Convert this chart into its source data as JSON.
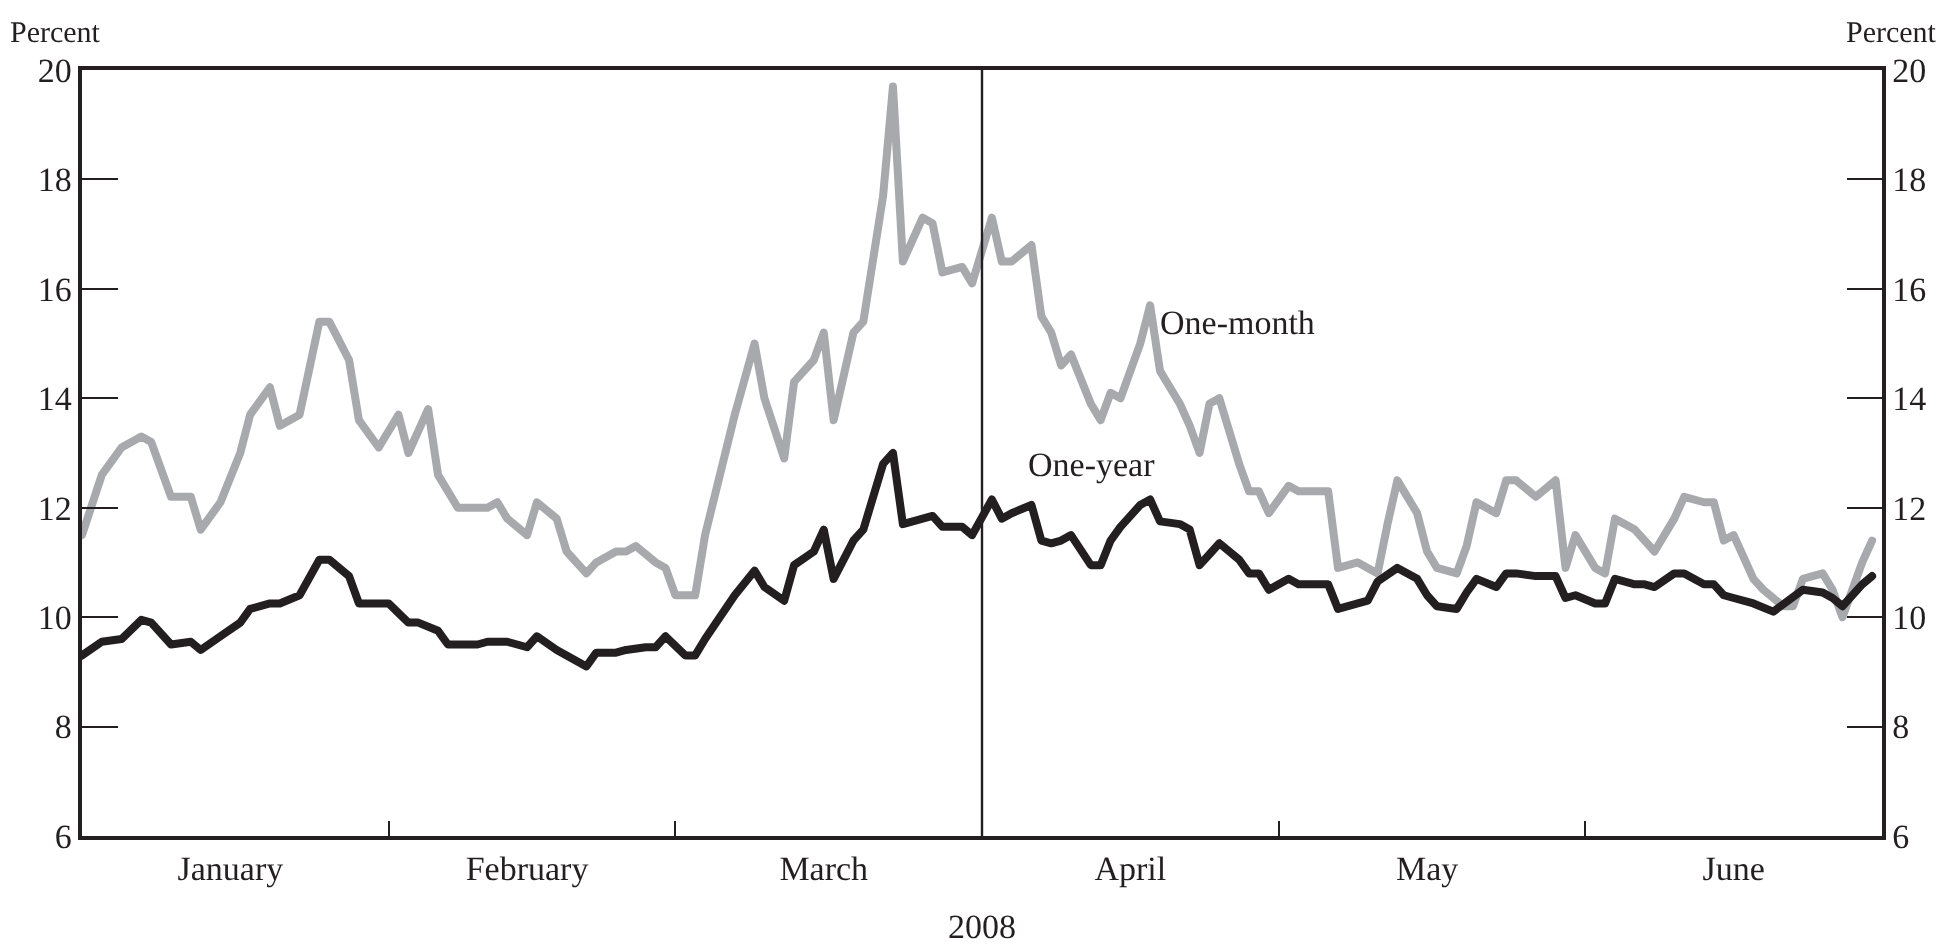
{
  "chart_data": {
    "type": "line",
    "xlabel": "2008",
    "ylabel": "Percent",
    "y2label": "Percent",
    "xlim": [
      "2008-01-01",
      "2008-07-01"
    ],
    "xticks": [
      {
        "value": "2008-01-16",
        "label": "January"
      },
      {
        "value": "2008-02-01",
        "label": null
      },
      {
        "value": "2008-02-15",
        "label": "February"
      },
      {
        "value": "2008-03-01",
        "label": null
      },
      {
        "value": "2008-03-16",
        "label": "March"
      },
      {
        "value": "2008-04-16",
        "label": "April"
      },
      {
        "value": "2008-05-01",
        "label": null
      },
      {
        "value": "2008-05-16",
        "label": "May"
      },
      {
        "value": "2008-06-01",
        "label": null
      },
      {
        "value": "2008-06-16",
        "label": "June"
      }
    ],
    "ylim": [
      6,
      20
    ],
    "yticks": [
      6,
      8,
      10,
      12,
      14,
      16,
      18,
      20
    ],
    "y2lim": [
      6,
      20
    ],
    "y2ticks": [
      6,
      8,
      10,
      12,
      14,
      16,
      18,
      20
    ],
    "legend": false,
    "marker": "none",
    "line_style": "solid",
    "ref_lines": [
      {
        "axis": "x",
        "value": "2008-04-01",
        "color": "#231f20"
      }
    ],
    "series": [
      {
        "name": "One-month",
        "color": "#a7a9ac",
        "x": [
          "2008-01-01",
          "2008-01-03",
          "2008-01-05",
          "2008-01-07",
          "2008-01-08",
          "2008-01-10",
          "2008-01-12",
          "2008-01-13",
          "2008-01-15",
          "2008-01-17",
          "2008-01-18",
          "2008-01-20",
          "2008-01-21",
          "2008-01-23",
          "2008-01-25",
          "2008-01-26",
          "2008-01-28",
          "2008-01-29",
          "2008-01-31",
          "2008-02-02",
          "2008-02-03",
          "2008-02-05",
          "2008-02-06",
          "2008-02-08",
          "2008-02-09",
          "2008-02-11",
          "2008-02-12",
          "2008-02-13",
          "2008-02-15",
          "2008-02-16",
          "2008-02-18",
          "2008-02-19",
          "2008-02-21",
          "2008-02-22",
          "2008-02-24",
          "2008-02-25",
          "2008-02-26",
          "2008-02-28",
          "2008-02-29",
          "2008-03-01",
          "2008-03-03",
          "2008-03-04",
          "2008-03-07",
          "2008-03-09",
          "2008-03-10",
          "2008-03-12",
          "2008-03-13",
          "2008-03-15",
          "2008-03-16",
          "2008-03-17",
          "2008-03-19",
          "2008-03-20",
          "2008-03-22",
          "2008-03-23",
          "2008-03-24",
          "2008-03-26",
          "2008-03-27",
          "2008-03-28",
          "2008-03-30",
          "2008-03-31",
          "2008-04-02",
          "2008-04-03",
          "2008-04-04",
          "2008-04-06",
          "2008-04-07",
          "2008-04-08",
          "2008-04-09",
          "2008-04-10",
          "2008-04-12",
          "2008-04-13",
          "2008-04-14",
          "2008-04-15",
          "2008-04-17",
          "2008-04-18",
          "2008-04-19",
          "2008-04-21",
          "2008-04-22",
          "2008-04-23",
          "2008-04-24",
          "2008-04-25",
          "2008-04-27",
          "2008-04-28",
          "2008-04-29",
          "2008-04-30",
          "2008-05-02",
          "2008-05-03",
          "2008-05-04",
          "2008-05-06",
          "2008-05-07",
          "2008-05-09",
          "2008-05-11",
          "2008-05-12",
          "2008-05-13",
          "2008-05-15",
          "2008-05-16",
          "2008-05-17",
          "2008-05-19",
          "2008-05-20",
          "2008-05-21",
          "2008-05-23",
          "2008-05-24",
          "2008-05-25",
          "2008-05-27",
          "2008-05-29",
          "2008-05-30",
          "2008-05-31",
          "2008-06-02",
          "2008-06-03",
          "2008-06-04",
          "2008-06-06",
          "2008-06-07",
          "2008-06-08",
          "2008-06-10",
          "2008-06-11",
          "2008-06-13",
          "2008-06-14",
          "2008-06-15",
          "2008-06-16",
          "2008-06-18",
          "2008-06-19",
          "2008-06-21",
          "2008-06-22",
          "2008-06-23",
          "2008-06-25",
          "2008-06-26",
          "2008-06-27",
          "2008-06-29",
          "2008-06-30"
        ],
        "values": [
          11.5,
          12.6,
          13.1,
          13.3,
          13.2,
          12.2,
          12.2,
          11.6,
          12.1,
          13.0,
          13.7,
          14.2,
          13.5,
          13.7,
          15.4,
          15.4,
          14.7,
          13.6,
          13.1,
          13.7,
          13.0,
          13.8,
          12.6,
          12.0,
          12.0,
          12.0,
          12.1,
          11.8,
          11.5,
          12.1,
          11.8,
          11.2,
          10.8,
          11.0,
          11.2,
          11.2,
          11.3,
          11.0,
          10.9,
          10.4,
          10.4,
          11.5,
          13.7,
          15.0,
          14.0,
          12.9,
          14.3,
          14.7,
          15.2,
          13.6,
          15.2,
          15.4,
          17.7,
          19.7,
          16.5,
          17.3,
          17.2,
          16.3,
          16.4,
          16.1,
          17.3,
          16.5,
          16.5,
          16.8,
          15.5,
          15.2,
          14.6,
          14.8,
          13.9,
          13.6,
          14.1,
          14.0,
          15.0,
          15.7,
          14.5,
          13.9,
          13.5,
          13.0,
          13.9,
          14.0,
          12.8,
          12.3,
          12.3,
          11.9,
          12.4,
          12.3,
          12.3,
          12.3,
          10.9,
          11.0,
          10.8,
          11.7,
          12.5,
          11.9,
          11.2,
          10.9,
          10.8,
          11.3,
          12.1,
          11.9,
          12.5,
          12.5,
          12.2,
          12.5,
          10.9,
          11.5,
          10.9,
          10.8,
          11.8,
          11.6,
          11.4,
          11.2,
          11.8,
          12.2,
          12.1,
          12.1,
          11.4,
          11.5,
          10.7,
          10.5,
          10.2,
          10.2,
          10.7,
          10.8,
          10.5,
          10.0,
          11.0,
          11.4
        ]
      },
      {
        "name": "One-year",
        "color": "#231f20",
        "x": [
          "2008-01-01",
          "2008-01-03",
          "2008-01-05",
          "2008-01-07",
          "2008-01-08",
          "2008-01-10",
          "2008-01-12",
          "2008-01-13",
          "2008-01-15",
          "2008-01-17",
          "2008-01-18",
          "2008-01-20",
          "2008-01-21",
          "2008-01-23",
          "2008-01-25",
          "2008-01-26",
          "2008-01-28",
          "2008-01-29",
          "2008-02-01",
          "2008-02-03",
          "2008-02-04",
          "2008-02-06",
          "2008-02-07",
          "2008-02-10",
          "2008-02-11",
          "2008-02-13",
          "2008-02-15",
          "2008-02-16",
          "2008-02-18",
          "2008-02-19",
          "2008-02-21",
          "2008-02-22",
          "2008-02-24",
          "2008-02-25",
          "2008-02-27",
          "2008-02-28",
          "2008-02-29",
          "2008-03-02",
          "2008-03-03",
          "2008-03-04",
          "2008-03-07",
          "2008-03-09",
          "2008-03-10",
          "2008-03-12",
          "2008-03-13",
          "2008-03-15",
          "2008-03-16",
          "2008-03-17",
          "2008-03-19",
          "2008-03-20",
          "2008-03-22",
          "2008-03-23",
          "2008-03-24",
          "2008-03-26",
          "2008-03-27",
          "2008-03-28",
          "2008-03-30",
          "2008-03-31",
          "2008-04-02",
          "2008-04-03",
          "2008-04-04",
          "2008-04-06",
          "2008-04-07",
          "2008-04-08",
          "2008-04-09",
          "2008-04-10",
          "2008-04-12",
          "2008-04-13",
          "2008-04-14",
          "2008-04-15",
          "2008-04-17",
          "2008-04-18",
          "2008-04-19",
          "2008-04-21",
          "2008-04-22",
          "2008-04-23",
          "2008-04-24",
          "2008-04-25",
          "2008-04-27",
          "2008-04-28",
          "2008-04-29",
          "2008-04-30",
          "2008-05-02",
          "2008-05-03",
          "2008-05-04",
          "2008-05-06",
          "2008-05-07",
          "2008-05-09",
          "2008-05-10",
          "2008-05-11",
          "2008-05-13",
          "2008-05-15",
          "2008-05-16",
          "2008-05-17",
          "2008-05-19",
          "2008-05-20",
          "2008-05-21",
          "2008-05-23",
          "2008-05-24",
          "2008-05-25",
          "2008-05-27",
          "2008-05-29",
          "2008-05-30",
          "2008-05-31",
          "2008-06-02",
          "2008-06-03",
          "2008-06-04",
          "2008-06-06",
          "2008-06-07",
          "2008-06-08",
          "2008-06-10",
          "2008-06-11",
          "2008-06-13",
          "2008-06-14",
          "2008-06-15",
          "2008-06-16",
          "2008-06-18",
          "2008-06-20",
          "2008-06-23",
          "2008-06-25",
          "2008-06-26",
          "2008-06-27",
          "2008-06-29",
          "2008-06-30"
        ],
        "values": [
          9.3,
          9.55,
          9.6,
          9.95,
          9.9,
          9.5,
          9.55,
          9.4,
          9.65,
          9.9,
          10.15,
          10.25,
          10.25,
          10.4,
          11.05,
          11.05,
          10.75,
          10.25,
          10.25,
          9.9,
          9.9,
          9.75,
          9.5,
          9.5,
          9.55,
          9.55,
          9.45,
          9.65,
          9.4,
          9.3,
          9.1,
          9.35,
          9.35,
          9.4,
          9.45,
          9.45,
          9.65,
          9.3,
          9.3,
          9.6,
          10.4,
          10.85,
          10.55,
          10.3,
          10.95,
          11.2,
          11.6,
          10.7,
          11.4,
          11.6,
          12.8,
          13.0,
          11.7,
          11.8,
          11.85,
          11.65,
          11.65,
          11.5,
          12.15,
          11.8,
          11.9,
          12.05,
          11.4,
          11.35,
          11.4,
          11.5,
          10.95,
          10.95,
          11.4,
          11.65,
          12.05,
          12.15,
          11.75,
          11.7,
          11.6,
          10.95,
          11.15,
          11.35,
          11.05,
          10.8,
          10.8,
          10.5,
          10.7,
          10.6,
          10.6,
          10.6,
          10.15,
          10.25,
          10.3,
          10.65,
          10.9,
          10.7,
          10.4,
          10.2,
          10.15,
          10.45,
          10.7,
          10.55,
          10.8,
          10.8,
          10.75,
          10.75,
          10.35,
          10.4,
          10.25,
          10.25,
          10.7,
          10.6,
          10.6,
          10.55,
          10.8,
          10.8,
          10.6,
          10.6,
          10.4,
          10.35,
          10.25,
          10.1,
          10.5,
          10.45,
          10.35,
          10.2,
          10.6,
          10.75
        ]
      }
    ]
  }
}
